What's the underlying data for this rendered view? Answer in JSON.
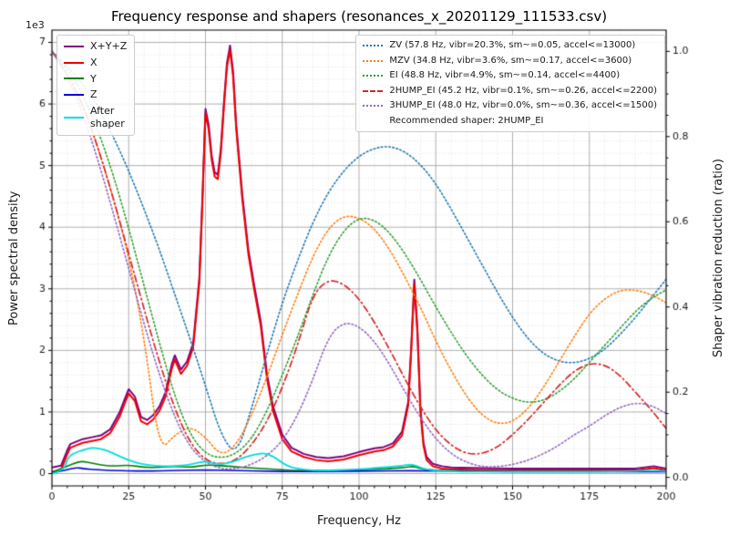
{
  "chart_data": {
    "type": "line",
    "title": "Frequency response and shapers (resonances_x_20201129_111533.csv)",
    "xlabel": "Frequency, Hz",
    "ylabel_left": "Power spectral density",
    "ylabel_right": "Shaper vibration reduction (ratio)",
    "offset_text": "1e3",
    "xlim": [
      0,
      200
    ],
    "ylim_left": [
      -0.2,
      7.2
    ],
    "ylim_right": [
      -0.02,
      1.05
    ],
    "x_ticks": [
      0,
      25,
      50,
      75,
      100,
      125,
      150,
      175,
      200
    ],
    "x_minor_step": 5,
    "y_left_ticks": [
      0,
      1,
      2,
      3,
      4,
      5,
      6,
      7
    ],
    "y_left_minor_step": 0.2,
    "y_right_ticks": [
      "0.0",
      "0.2",
      "0.4",
      "0.6",
      "0.8",
      "1.0"
    ],
    "grid": {
      "major_color": "#9b9b9b",
      "minor_color": "#d6d6d6",
      "grid_on": true
    },
    "legend_left": {
      "entries": [
        {
          "label": "X+Y+Z",
          "color": "#800080",
          "style": "solid"
        },
        {
          "label": "X",
          "color": "#ee0000",
          "style": "solid"
        },
        {
          "label": "Y",
          "color": "#008000",
          "style": "solid"
        },
        {
          "label": "Z",
          "color": "#0000dd",
          "style": "solid"
        },
        {
          "label": "After\nshaper",
          "color": "#00dde0",
          "style": "solid"
        }
      ]
    },
    "legend_right": {
      "entries": [
        {
          "label": "ZV (57.8 Hz, vibr=20.3%, sm~=0.05, accel<=13000)",
          "color": "#1f77b4",
          "style": "dotted"
        },
        {
          "label": "MZV (34.8 Hz, vibr=3.6%, sm~=0.17, accel<=3600)",
          "color": "#ff7f0e",
          "style": "dotted"
        },
        {
          "label": "EI (48.8 Hz, vibr=4.9%, sm~=0.14, accel<=4400)",
          "color": "#2ca02c",
          "style": "dotted"
        },
        {
          "label": "2HUMP_EI (45.2 Hz, vibr=0.1%, sm~=0.26, accel<=2200)",
          "color": "#d62728",
          "style": "dashdot"
        },
        {
          "label": "3HUMP_EI (48.0 Hz, vibr=0.0%, sm~=0.36, accel<=1500)",
          "color": "#9467bd",
          "style": "dotted"
        },
        {
          "label": "Recommended shaper: 2HUMP_EI",
          "color": null,
          "style": "none"
        }
      ]
    },
    "series": [
      {
        "name": "X+Y+Z",
        "axis": "left",
        "color": "#800080",
        "style": "solid",
        "width": 2,
        "smooth": false,
        "x": [
          0,
          3,
          5,
          6,
          8,
          10,
          13,
          16,
          19,
          22,
          24,
          25,
          27,
          29,
          31,
          33,
          35,
          37,
          39,
          40,
          42,
          44,
          46,
          48,
          49,
          50,
          51,
          52,
          53,
          54,
          55,
          56,
          57,
          58,
          59,
          60,
          62,
          64,
          66,
          68,
          70,
          72,
          75,
          78,
          82,
          86,
          90,
          95,
          100,
          105,
          108,
          111,
          114,
          116,
          117,
          118,
          119,
          120,
          121,
          122,
          124,
          127,
          130,
          140,
          150,
          160,
          170,
          180,
          190,
          196,
          200
        ],
        "y": [
          0.1,
          0.13,
          0.38,
          0.48,
          0.52,
          0.56,
          0.59,
          0.62,
          0.72,
          0.99,
          1.25,
          1.37,
          1.25,
          0.92,
          0.87,
          0.95,
          1.09,
          1.32,
          1.77,
          1.92,
          1.69,
          1.82,
          2.12,
          3.17,
          4.47,
          5.92,
          5.67,
          5.17,
          4.89,
          4.85,
          5.27,
          6.02,
          6.67,
          6.95,
          6.52,
          5.67,
          4.52,
          3.62,
          3.02,
          2.47,
          1.62,
          1.09,
          0.63,
          0.42,
          0.32,
          0.27,
          0.25,
          0.28,
          0.35,
          0.41,
          0.43,
          0.49,
          0.68,
          1.16,
          2.06,
          3.15,
          2.36,
          1.06,
          0.5,
          0.27,
          0.16,
          0.12,
          0.1,
          0.09,
          0.08,
          0.08,
          0.08,
          0.08,
          0.08,
          0.12,
          0.08
        ]
      },
      {
        "name": "X",
        "axis": "left",
        "color": "#ee0000",
        "style": "solid",
        "width": 2,
        "smooth": false,
        "x": [
          0,
          3,
          5,
          6,
          8,
          10,
          13,
          16,
          19,
          22,
          24,
          25,
          27,
          29,
          31,
          33,
          35,
          37,
          39,
          40,
          42,
          44,
          46,
          48,
          49,
          50,
          51,
          52,
          53,
          54,
          55,
          56,
          57,
          58,
          59,
          60,
          62,
          64,
          66,
          68,
          70,
          72,
          75,
          78,
          82,
          86,
          90,
          95,
          100,
          105,
          108,
          111,
          114,
          116,
          117,
          118,
          119,
          120,
          121,
          122,
          124,
          127,
          130,
          140,
          150,
          160,
          170,
          180,
          190,
          196,
          200
        ],
        "y": [
          0.03,
          0.06,
          0.32,
          0.42,
          0.46,
          0.5,
          0.53,
          0.56,
          0.66,
          0.92,
          1.18,
          1.3,
          1.18,
          0.85,
          0.8,
          0.88,
          1.02,
          1.25,
          1.7,
          1.85,
          1.62,
          1.75,
          2.05,
          3.1,
          4.4,
          5.85,
          5.6,
          5.1,
          4.82,
          4.78,
          5.2,
          5.95,
          6.6,
          6.88,
          6.45,
          5.6,
          4.45,
          3.55,
          2.95,
          2.4,
          1.55,
          1.02,
          0.56,
          0.36,
          0.27,
          0.22,
          0.2,
          0.23,
          0.3,
          0.36,
          0.38,
          0.44,
          0.62,
          1.1,
          2.0,
          3.08,
          2.3,
          1.0,
          0.45,
          0.22,
          0.12,
          0.08,
          0.07,
          0.06,
          0.05,
          0.05,
          0.05,
          0.05,
          0.05,
          0.09,
          0.05
        ]
      },
      {
        "name": "Y",
        "axis": "left",
        "color": "#008000",
        "style": "solid",
        "width": 1.6,
        "smooth": true,
        "x": [
          0,
          5,
          8,
          10,
          13,
          16,
          20,
          25,
          30,
          35,
          40,
          45,
          50,
          55,
          60,
          65,
          70,
          75,
          80,
          90,
          100,
          110,
          115,
          118,
          120,
          125,
          130,
          140,
          160,
          180,
          200
        ],
        "y": [
          0.02,
          0.12,
          0.18,
          0.2,
          0.17,
          0.14,
          0.12,
          0.14,
          0.1,
          0.1,
          0.12,
          0.1,
          0.14,
          0.13,
          0.11,
          0.09,
          0.08,
          0.06,
          0.05,
          0.05,
          0.06,
          0.08,
          0.1,
          0.12,
          0.08,
          0.05,
          0.05,
          0.04,
          0.04,
          0.04,
          0.04
        ]
      },
      {
        "name": "Z",
        "axis": "left",
        "color": "#0000dd",
        "style": "solid",
        "width": 1.6,
        "smooth": true,
        "x": [
          0,
          5,
          8,
          10,
          15,
          20,
          30,
          40,
          50,
          60,
          70,
          80,
          100,
          120,
          140,
          160,
          180,
          200
        ],
        "y": [
          0.01,
          0.06,
          0.1,
          0.08,
          0.06,
          0.05,
          0.04,
          0.05,
          0.06,
          0.05,
          0.04,
          0.03,
          0.04,
          0.05,
          0.03,
          0.03,
          0.03,
          0.03
        ]
      },
      {
        "name": "ZV",
        "axis": "right",
        "color": "#1f77b4",
        "style": "dotted",
        "width": 1.6,
        "smooth": true,
        "x0": 0,
        "dx": 5,
        "y": [
          1.0,
          0.965,
          0.925,
          0.87,
          0.8,
          0.72,
          0.63,
          0.535,
          0.43,
          0.325,
          0.215,
          0.1,
          0.05,
          0.16,
          0.29,
          0.41,
          0.51,
          0.6,
          0.67,
          0.72,
          0.755,
          0.773,
          0.778,
          0.765,
          0.735,
          0.69,
          0.63,
          0.565,
          0.5,
          0.435,
          0.375,
          0.325,
          0.29,
          0.272,
          0.268,
          0.278,
          0.3,
          0.335,
          0.375,
          0.42,
          0.465
        ]
      },
      {
        "name": "MZV",
        "axis": "right",
        "color": "#ff7f0e",
        "style": "dotted",
        "width": 1.6,
        "smooth": true,
        "x0": 0,
        "dx": 5,
        "y": [
          1.0,
          0.95,
          0.875,
          0.775,
          0.655,
          0.52,
          0.33,
          0.06,
          0.1,
          0.12,
          0.095,
          0.05,
          0.075,
          0.145,
          0.235,
          0.335,
          0.43,
          0.52,
          0.585,
          0.615,
          0.61,
          0.585,
          0.535,
          0.47,
          0.4,
          0.32,
          0.25,
          0.19,
          0.145,
          0.125,
          0.13,
          0.16,
          0.21,
          0.27,
          0.33,
          0.385,
          0.42,
          0.44,
          0.44,
          0.43,
          0.41
        ]
      },
      {
        "name": "EI",
        "axis": "right",
        "color": "#2ca02c",
        "style": "dotted",
        "width": 1.6,
        "smooth": true,
        "x0": 0,
        "dx": 5,
        "y": [
          1.0,
          0.96,
          0.9,
          0.815,
          0.71,
          0.585,
          0.45,
          0.315,
          0.19,
          0.1,
          0.055,
          0.045,
          0.055,
          0.09,
          0.155,
          0.24,
          0.33,
          0.43,
          0.52,
          0.58,
          0.61,
          0.605,
          0.575,
          0.525,
          0.465,
          0.4,
          0.34,
          0.285,
          0.24,
          0.205,
          0.185,
          0.175,
          0.18,
          0.2,
          0.23,
          0.27,
          0.31,
          0.35,
          0.39,
          0.42,
          0.44
        ]
      },
      {
        "name": "2HUMP_EI",
        "axis": "right",
        "color": "#d62728",
        "style": "dashdot",
        "width": 1.7,
        "smooth": true,
        "x0": 0,
        "dx": 5,
        "y": [
          1.0,
          0.95,
          0.875,
          0.775,
          0.655,
          0.525,
          0.395,
          0.27,
          0.16,
          0.08,
          0.04,
          0.03,
          0.04,
          0.075,
          0.13,
          0.21,
          0.31,
          0.43,
          0.465,
          0.455,
          0.42,
          0.365,
          0.3,
          0.23,
          0.165,
          0.11,
          0.075,
          0.055,
          0.055,
          0.07,
          0.1,
          0.135,
          0.175,
          0.215,
          0.25,
          0.268,
          0.265,
          0.24,
          0.2,
          0.16,
          0.115
        ]
      },
      {
        "name": "3HUMP_EI",
        "axis": "right",
        "color": "#9467bd",
        "style": "dotted",
        "width": 1.6,
        "smooth": true,
        "x0": 0,
        "dx": 5,
        "y": [
          1.0,
          0.945,
          0.855,
          0.745,
          0.62,
          0.49,
          0.36,
          0.24,
          0.14,
          0.07,
          0.035,
          0.02,
          0.02,
          0.03,
          0.05,
          0.085,
          0.145,
          0.23,
          0.33,
          0.365,
          0.355,
          0.32,
          0.265,
          0.2,
          0.14,
          0.09,
          0.055,
          0.035,
          0.025,
          0.025,
          0.03,
          0.04,
          0.055,
          0.075,
          0.1,
          0.12,
          0.145,
          0.165,
          0.175,
          0.17,
          0.15
        ]
      },
      {
        "name": "After shaper",
        "axis": "left",
        "color": "#00dde0",
        "style": "solid",
        "width": 1.8,
        "smooth": true,
        "x": [
          0,
          4,
          5,
          7,
          10,
          12,
          14,
          16,
          18,
          20,
          22,
          25,
          28,
          30,
          33,
          36,
          40,
          44,
          47,
          50,
          52,
          55,
          58,
          60,
          62,
          65,
          67,
          69,
          71,
          73,
          75,
          78,
          80,
          85,
          90,
          95,
          100,
          105,
          110,
          114,
          117,
          119,
          121,
          124,
          128,
          135,
          145,
          160,
          175,
          190,
          195,
          200
        ],
        "y": [
          0.0,
          0.05,
          0.25,
          0.33,
          0.38,
          0.41,
          0.42,
          0.4,
          0.37,
          0.33,
          0.28,
          0.22,
          0.17,
          0.15,
          0.13,
          0.12,
          0.12,
          0.14,
          0.17,
          0.2,
          0.17,
          0.15,
          0.18,
          0.21,
          0.25,
          0.3,
          0.32,
          0.33,
          0.3,
          0.25,
          0.17,
          0.1,
          0.08,
          0.05,
          0.05,
          0.06,
          0.07,
          0.09,
          0.11,
          0.13,
          0.15,
          0.12,
          0.08,
          0.05,
          0.04,
          0.03,
          0.03,
          0.03,
          0.03,
          0.04,
          0.05,
          0.04
        ]
      }
    ],
    "recommended_note": "Recommended shaper: 2HUMP_EI"
  }
}
